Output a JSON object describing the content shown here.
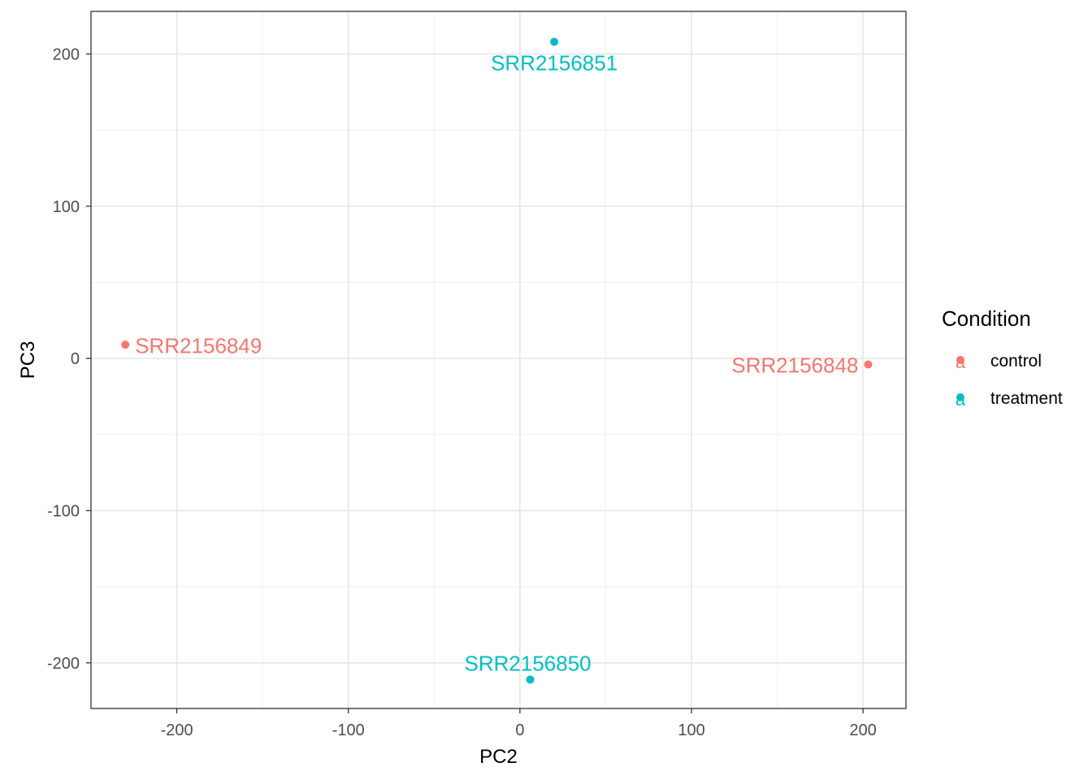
{
  "chart_data": {
    "type": "scatter",
    "xlabel": "PC2",
    "ylabel": "PC3",
    "xlim": [
      -250,
      225
    ],
    "ylim": [
      -230,
      228
    ],
    "x_ticks": [
      -200,
      -100,
      0,
      100,
      200
    ],
    "y_ticks": [
      -200,
      -100,
      0,
      100,
      200
    ],
    "x_tick_labels": [
      "-200",
      "-100",
      "0",
      "100",
      "200"
    ],
    "y_tick_labels": [
      "-200",
      "-100",
      "0",
      "100",
      "200"
    ],
    "grid": true,
    "legend": {
      "title": "Condition",
      "position": "right",
      "glyph": "a",
      "items": [
        {
          "name": "control",
          "color": "#F8766D"
        },
        {
          "name": "treatment",
          "color": "#00BFC4"
        }
      ]
    },
    "points": [
      {
        "label": "SRR2156849",
        "x": -230,
        "y": 9,
        "group": "control",
        "color": "#F8766D",
        "label_side": "right"
      },
      {
        "label": "SRR2156848",
        "x": 203,
        "y": -4,
        "group": "control",
        "color": "#F8766D",
        "label_side": "left"
      },
      {
        "label": "SRR2156851",
        "x": 20,
        "y": 208,
        "group": "treatment",
        "color": "#00BFC4",
        "label_side": "below"
      },
      {
        "label": "SRR2156850",
        "x": 6,
        "y": -211,
        "group": "treatment",
        "color": "#00BFC4",
        "label_side": "above"
      }
    ]
  }
}
